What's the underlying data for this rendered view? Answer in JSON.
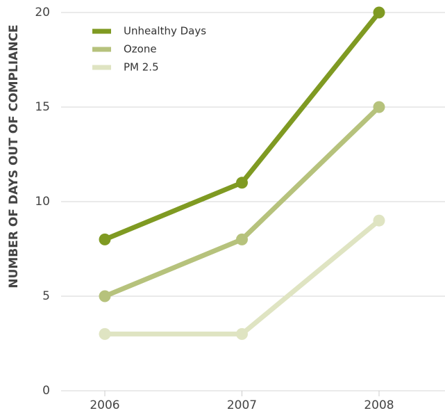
{
  "chart_data": {
    "type": "line",
    "y_label": "NUMBER OF DAYS OUT OF COMPLIANCE",
    "categories": [
      "2006",
      "2007",
      "2008"
    ],
    "series": [
      {
        "name": "Unhealthy Days",
        "color": "#7f9a22",
        "values": [
          8,
          11,
          20
        ]
      },
      {
        "name": "Ozone",
        "color": "#b6c27c",
        "values": [
          5,
          8,
          15
        ]
      },
      {
        "name": "PM 2.5",
        "color": "#dfe4c2",
        "values": [
          3,
          3,
          9
        ]
      }
    ],
    "ylim": [
      0,
      20
    ],
    "yticks": [
      0,
      5,
      10,
      15,
      20
    ],
    "grid": true,
    "legend": "upper left"
  }
}
